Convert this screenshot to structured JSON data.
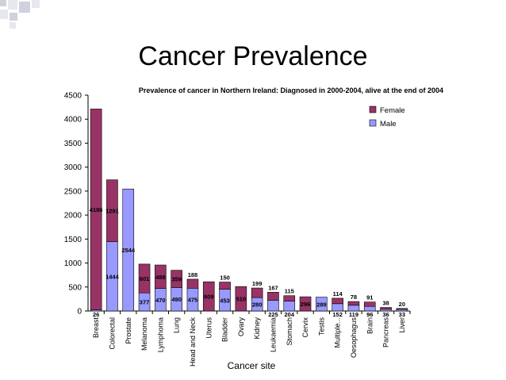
{
  "slide": {
    "title": "Cancer Prevalence"
  },
  "colors": {
    "female": "#993366",
    "male": "#9999ff",
    "corner_dark": "#cfd2dc",
    "corner_light": "#e6e8ee"
  },
  "chart_data": {
    "type": "bar",
    "stacked": true,
    "title": "Prevalence of cancer in Northern Ireland: Diagnosed in 2000-2004, alive at the end of 2004",
    "xlabel": "Cancer site",
    "ylabel": "",
    "ylim": [
      0,
      4500
    ],
    "yticks": [
      0,
      500,
      1000,
      1500,
      2000,
      2500,
      3000,
      3500,
      4000,
      4500
    ],
    "grid": false,
    "legend_position": "top-right",
    "categories": [
      "Breast",
      "Colorectal",
      "Prostate",
      "Melanoma",
      "Lymphoma",
      "Lung",
      "Head and Neck",
      "Uterus",
      "Bladder",
      "Ovary",
      "Kidney",
      "Leukaemia",
      "Stomach",
      "Cervix",
      "Testis",
      "Multiple...",
      "Oesophagus",
      "Brain",
      "Pancreas",
      "Liver"
    ],
    "series": [
      {
        "name": "Male",
        "color": "#9999ff",
        "values": [
          26,
          1444,
          2544,
          377,
          470,
          490,
          475,
          0,
          453,
          0,
          280,
          225,
          204,
          0,
          289,
          152,
          119,
          96,
          36,
          33
        ],
        "labels": [
          "26",
          "1444",
          "2544",
          "377",
          "470",
          "490",
          "475",
          "",
          "453",
          "",
          "280",
          "225",
          "204",
          "",
          "289",
          "152",
          "119",
          "96",
          "36",
          "33"
        ]
      },
      {
        "name": "Female",
        "color": "#993366",
        "values": [
          4186,
          1291,
          0,
          601,
          489,
          359,
          188,
          609,
          150,
          510,
          199,
          167,
          115,
          296,
          0,
          114,
          78,
          91,
          38,
          20
        ],
        "labels": [
          "4186",
          "1291",
          "",
          "601",
          "489",
          "359",
          "188",
          "609",
          "150",
          "510",
          "199",
          "167",
          "115",
          "296",
          "",
          "114",
          "78",
          "91",
          "38",
          "20"
        ]
      }
    ]
  }
}
